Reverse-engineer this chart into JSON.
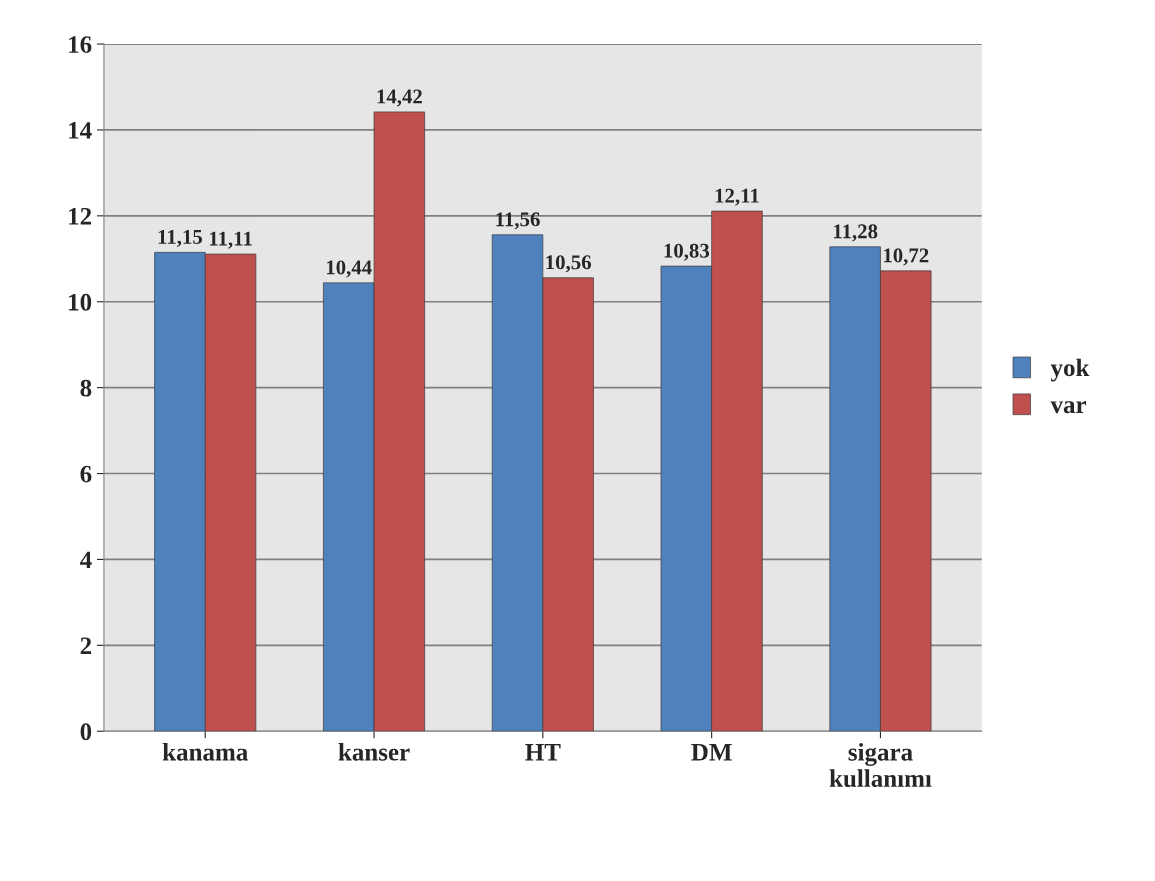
{
  "chart_data": {
    "type": "bar",
    "categories": [
      "kanama",
      "kanser",
      "HT",
      "DM",
      "sigara\nkullanımı"
    ],
    "series": [
      {
        "name": "yok",
        "color": "#4f81bd",
        "values": [
          11.15,
          10.44,
          11.56,
          10.83,
          11.28
        ],
        "value_labels": [
          "11,15",
          "10,44",
          "11,56",
          "10,83",
          "11,28"
        ]
      },
      {
        "name": "var",
        "color": "#c0504d",
        "values": [
          11.11,
          14.42,
          10.56,
          12.11,
          10.72
        ],
        "value_labels": [
          "11,11",
          "14,42",
          "10,56",
          "12,11",
          "10,72"
        ]
      }
    ],
    "ylim": [
      0,
      16
    ],
    "yticks": [
      0,
      2,
      4,
      6,
      8,
      10,
      12,
      14,
      16
    ],
    "grid": "y",
    "legend": "right"
  }
}
